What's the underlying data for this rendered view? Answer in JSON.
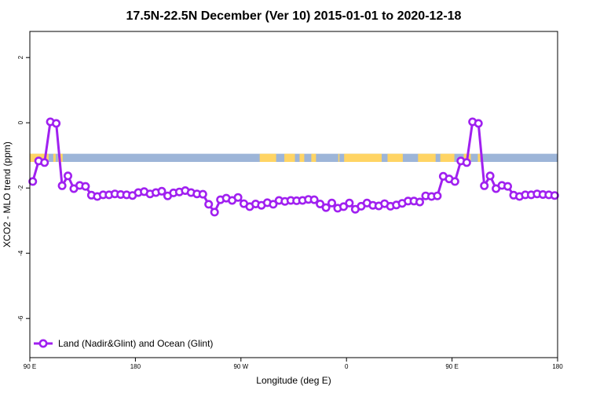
{
  "chart_data": {
    "type": "line",
    "title": "17.5N-22.5N December (Ver 10)   2015-01-01 to 2020-12-18",
    "xlabel": "Longitude (deg E)",
    "ylabel": "XCO2 - MLO trend (ppm)",
    "xlim": [
      90,
      450
    ],
    "ylim": [
      -7.2,
      2.8
    ],
    "x_ticks": [
      {
        "value": 90,
        "label": "90 E"
      },
      {
        "value": 180,
        "label": "180"
      },
      {
        "value": 270,
        "label": "90 W"
      },
      {
        "value": 360,
        "label": "0"
      },
      {
        "value": 450,
        "label": "90 E"
      },
      {
        "value": 540,
        "label": "180"
      }
    ],
    "y_ticks": [
      {
        "value": 2,
        "label": "2"
      },
      {
        "value": 0,
        "label": "0"
      },
      {
        "value": -2,
        "label": "-2"
      },
      {
        "value": -4,
        "label": "-4"
      },
      {
        "value": -6,
        "label": "-6"
      }
    ],
    "x_display_range": [
      90,
      540
    ],
    "grid": false,
    "legend_position": "bottom-left",
    "series": [
      {
        "name": "Land (Nadir&Glint) and Ocean (Glint)",
        "color": "#a020f0",
        "marker": "open-circle",
        "x": [
          92.5,
          97.5,
          102.5,
          107.5,
          112.5,
          117.5,
          122.5,
          127.5,
          132.5,
          137.5,
          142.5,
          147.5,
          152.5,
          157.5,
          162.5,
          167.5,
          172.5,
          177.5,
          182.5,
          187.5,
          192.5,
          197.5,
          202.5,
          207.5,
          212.5,
          217.5,
          222.5,
          227.5,
          232.5,
          237.5,
          242.5,
          247.5,
          252.5,
          257.5,
          262.5,
          267.5,
          272.5,
          277.5,
          282.5,
          287.5,
          292.5,
          297.5,
          302.5,
          307.5,
          312.5,
          317.5,
          322.5,
          327.5,
          332.5,
          337.5,
          342.5,
          347.5,
          352.5,
          357.5,
          362.5,
          367.5,
          372.5,
          377.5,
          382.5,
          387.5,
          392.5,
          397.5,
          402.5,
          407.5,
          412.5,
          417.5,
          422.5,
          427.5,
          432.5,
          437.5,
          442.5,
          447.5
        ],
        "y": [
          -1.8,
          -1.17,
          -1.22,
          0.03,
          -0.02,
          -1.93,
          -1.63,
          -2.02,
          -1.92,
          -1.95,
          -2.22,
          -2.26,
          -2.21,
          -2.21,
          -2.18,
          -2.2,
          -2.21,
          -2.23,
          -2.14,
          -2.11,
          -2.18,
          -2.14,
          -2.1,
          -2.24,
          -2.15,
          -2.12,
          -2.08,
          -2.14,
          -2.18,
          -2.19,
          -2.5,
          -2.74,
          -2.36,
          -2.31,
          -2.38,
          -2.29,
          -2.48,
          -2.57,
          -2.49,
          -2.53,
          -2.45,
          -2.5,
          -2.38,
          -2.41,
          -2.38,
          -2.39,
          -2.38,
          -2.35,
          -2.36,
          -2.49,
          -2.6,
          -2.46,
          -2.62,
          -2.57,
          -2.46,
          -2.65,
          -2.56,
          -2.46,
          -2.53,
          -2.55,
          -2.48,
          -2.56,
          -2.52,
          -2.47,
          -2.4,
          -2.4,
          -2.43,
          -2.24,
          -2.26,
          -2.24,
          -1.64,
          -1.72
        ],
        "x_repeat_offset": 360
      }
    ],
    "surface_band": {
      "y_range": [
        -1.2,
        -0.95
      ],
      "ocean_color": "#9db5d8",
      "land_color": "#ffd464",
      "land_x_ranges": [
        [
          90,
          106
        ],
        [
          110,
          112
        ],
        [
          114,
          118
        ],
        [
          286,
          300
        ],
        [
          307,
          316
        ],
        [
          320,
          324
        ],
        [
          330,
          334
        ],
        [
          353,
          354
        ],
        [
          358,
          390
        ],
        [
          395,
          408
        ],
        [
          421,
          436
        ],
        [
          440,
          452
        ],
        [
          460,
          466
        ],
        [
          472,
          474
        ]
      ]
    }
  }
}
